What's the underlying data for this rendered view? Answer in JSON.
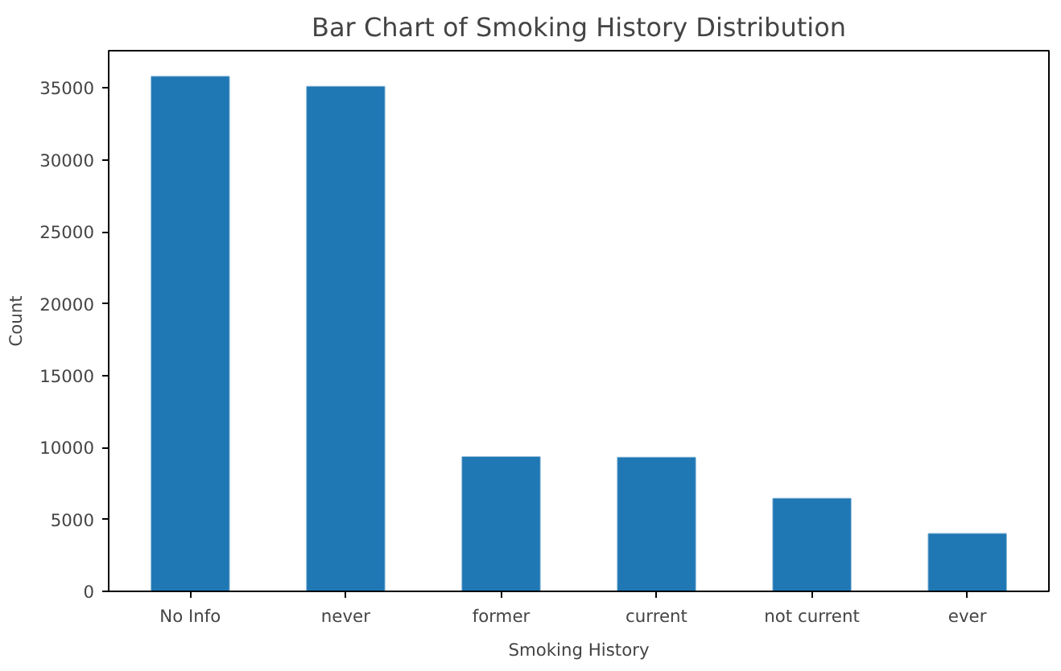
{
  "chart_data": {
    "type": "bar",
    "title": "Bar Chart of Smoking History Distribution",
    "xlabel": "Smoking History",
    "ylabel": "Count",
    "categories": [
      "No Info",
      "never",
      "former",
      "current",
      "not current",
      "ever"
    ],
    "values": [
      35800,
      35100,
      9350,
      9300,
      6450,
      4000
    ],
    "color": "#1f77b4",
    "ylim": [
      0,
      37600
    ],
    "yticks": [
      0,
      5000,
      10000,
      15000,
      20000,
      25000,
      30000,
      35000
    ],
    "grid": false
  }
}
